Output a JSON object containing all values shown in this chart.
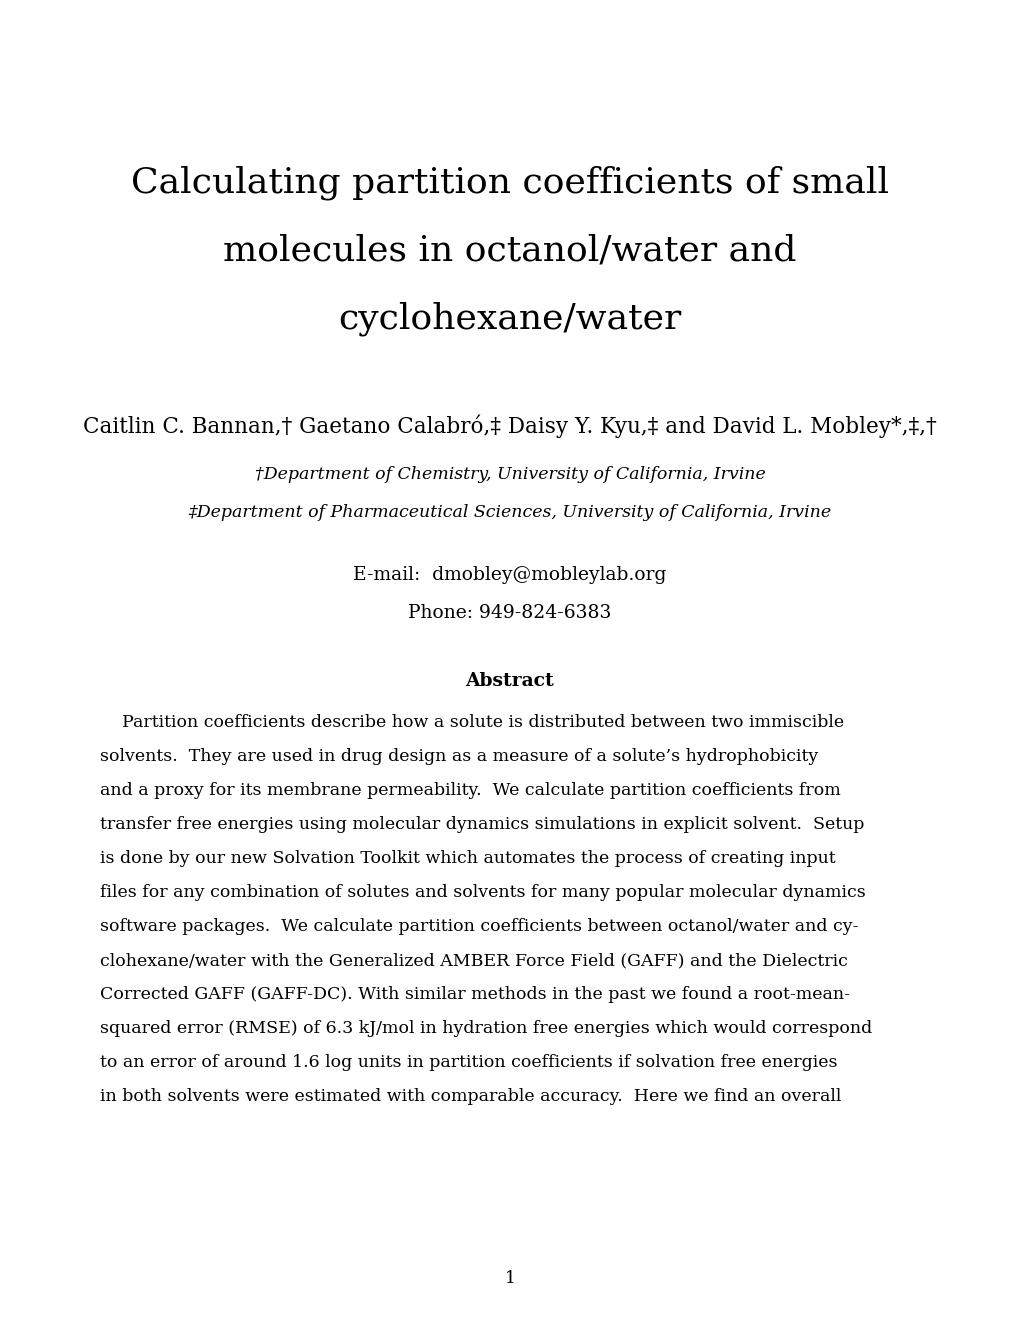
{
  "background_color": "#ffffff",
  "title_lines": [
    "Calculating partition coefficients of small",
    "molecules in octanol/water and",
    "cyclohexane/water"
  ],
  "title_fontsize": 26,
  "authors": "Caitlin C. Bannan,† Gaetano Calabró,‡ Daisy Y. Kyu,‡ and David L. Mobley*,‡,†",
  "authors_fontsize": 15.5,
  "affil1": "†Department of Chemistry, University of California, Irvine",
  "affil2": "‡Department of Pharmaceutical Sciences, University of California, Irvine",
  "affil_fontsize": 12.5,
  "email_line": "E-mail:  dmobley@mobleylab.org",
  "phone_line": "Phone: 949-824-6383",
  "contact_fontsize": 13.5,
  "abstract_title": "Abstract",
  "abstract_title_fontsize": 13.5,
  "abstract_lines": [
    "    Partition coefficients describe how a solute is distributed between two immiscible",
    "solvents.  They are used in drug design as a measure of a solute’s hydrophobicity",
    "and a proxy for its membrane permeability.  We calculate partition coefficients from",
    "transfer free energies using molecular dynamics simulations in explicit solvent.  Setup",
    "is done by our new Solvation Toolkit which automates the process of creating input",
    "files for any combination of solutes and solvents for many popular molecular dynamics",
    "software packages.  We calculate partition coefficients between octanol/water and cy-",
    "clohexane/water with the Generalized AMBER Force Field (GAFF) and the Dielectric",
    "Corrected GAFF (GAFF-DC). With similar methods in the past we found a root-mean-",
    "squared error (RMSE) of 6.3 kJ/mol in hydration free energies which would correspond",
    "to an error of around 1.6 log units in partition coefficients if solvation free energies",
    "in both solvents were estimated with comparable accuracy.  Here we find an overall"
  ],
  "abstract_fontsize": 12.5,
  "page_number": "1",
  "page_fontsize": 12.5
}
